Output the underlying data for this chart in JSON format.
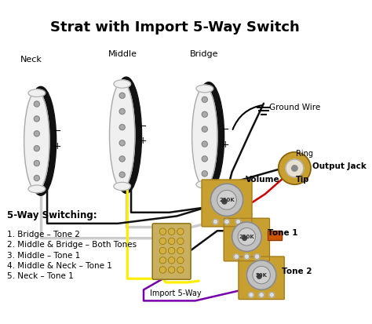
{
  "title": "Strat with Import 5-Way Switch",
  "background_color": "#ffffff",
  "title_fontsize": 13,
  "title_fontweight": "bold",
  "pickup_labels": [
    "Neck",
    "Middle",
    "Bridge"
  ],
  "switching_text": [
    "5-Way Switching:",
    "",
    "1. Bridge – Tone 2",
    "2. Middle & Bridge – Both Tones",
    "3. Middle – Tone 1",
    "4. Middle & Neck – Tone 1",
    "5. Neck – Tone 1"
  ],
  "component_labels": {
    "volume": "Volume",
    "tone1": "Tone 1",
    "tone2": "Tone 2",
    "switch": "Import 5-Way",
    "ground": "Ground Wire",
    "output": "Output Jack",
    "ring": "Ring",
    "tip": "Tip"
  },
  "pot_color": "#c0c0c0",
  "pot_border": "#888888",
  "pot_base_color": "#c8a030",
  "pickup_body_color": "#111111",
  "pickup_cover_color": "#f0f0f0",
  "pickup_pole_color": "#aaaaaa",
  "switch_color": "#b8a050",
  "switch_base_color": "#c8b060",
  "wire_black": "#111111",
  "wire_white": "#cccccc",
  "wire_yellow": "#ffee00",
  "wire_red": "#cc0000",
  "wire_green": "#007700",
  "wire_purple": "#7700aa",
  "cap_color": "#cc5500",
  "output_jack_color": "#c8a030",
  "output_jack_inner": "#e8e0d0"
}
